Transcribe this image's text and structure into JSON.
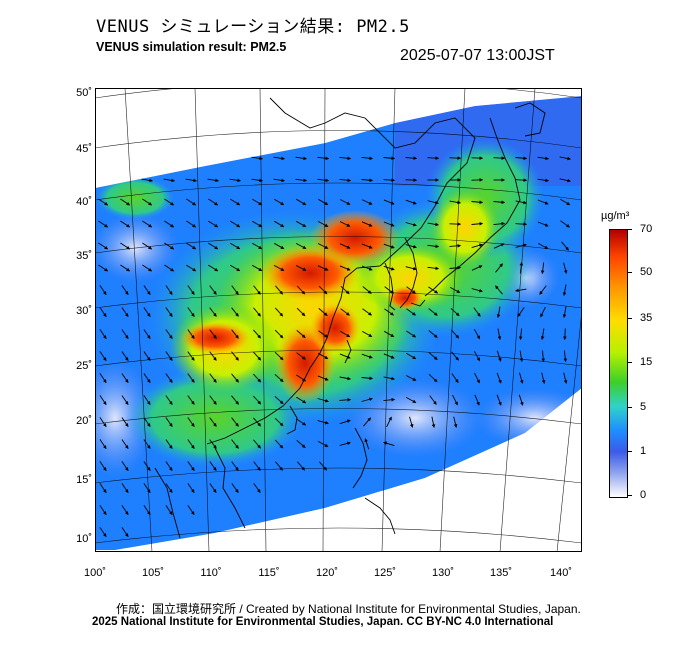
{
  "title_jp": "VENUS シミュレーション結果: PM2.5",
  "title_en": "VENUS simulation result: PM2.5",
  "datetime": "2025-07-07 13:00JST",
  "lat_labels": [
    "50˚",
    "45˚",
    "40˚",
    "35˚",
    "30˚",
    "25˚",
    "20˚",
    "15˚",
    "10˚"
  ],
  "lon_labels": [
    "100˚",
    "105˚",
    "110˚",
    "115˚",
    "120˚",
    "125˚",
    "130˚",
    "135˚",
    "140˚"
  ],
  "colorbar": {
    "unit": "µg/m³",
    "labels": [
      "70",
      "50",
      "35",
      "15",
      "5",
      "1",
      "0"
    ],
    "colors": [
      "#b30000",
      "#ff4400",
      "#ff9900",
      "#ffdd00",
      "#b6f000",
      "#3ccf2a",
      "#2fd3c8",
      "#1e8fff",
      "#3a5be8",
      "#8fa4ee",
      "#ffffff"
    ]
  },
  "credit_line1": "作成：国立環境研究所 / Created by National Institute for Environmental Studies, Japan.",
  "credit_line2": "2025 National Institute for Environmental Studies, Japan. CC BY-NC 4.0 International"
}
